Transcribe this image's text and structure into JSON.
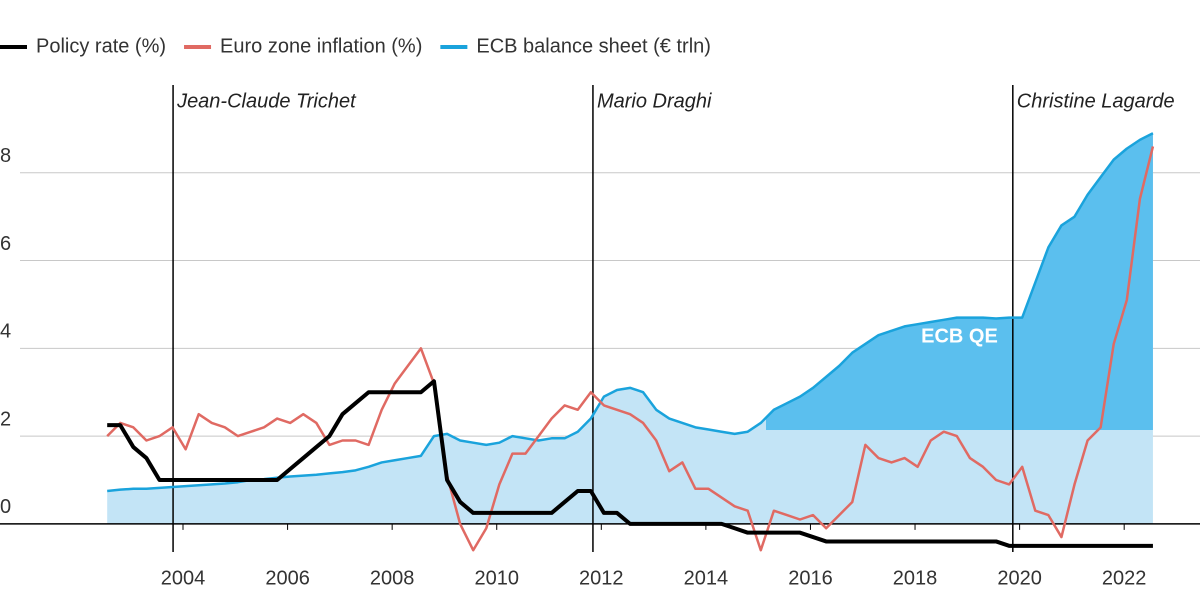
{
  "chart_data": {
    "type": "line",
    "x": [
      2002.55,
      2002.8,
      2003.05,
      2003.3,
      2003.55,
      2003.8,
      2004.05,
      2004.3,
      2004.55,
      2004.8,
      2005.05,
      2005.3,
      2005.55,
      2005.8,
      2006.05,
      2006.3,
      2006.55,
      2006.8,
      2007.05,
      2007.3,
      2007.55,
      2007.8,
      2008.05,
      2008.3,
      2008.55,
      2008.8,
      2009.05,
      2009.3,
      2009.55,
      2009.8,
      2010.05,
      2010.3,
      2010.55,
      2010.8,
      2011.05,
      2011.3,
      2011.55,
      2011.8,
      2012.05,
      2012.3,
      2012.55,
      2012.8,
      2013.05,
      2013.3,
      2013.55,
      2013.8,
      2014.05,
      2014.3,
      2014.55,
      2014.8,
      2015.05,
      2015.3,
      2015.55,
      2015.8,
      2016.05,
      2016.3,
      2016.55,
      2016.8,
      2017.05,
      2017.3,
      2017.55,
      2017.8,
      2018.05,
      2018.3,
      2018.55,
      2018.8,
      2019.05,
      2019.3,
      2019.55,
      2019.8,
      2020.05,
      2020.3,
      2020.55,
      2020.8,
      2021.05,
      2021.3,
      2021.55,
      2021.8,
      2022.05,
      2022.3,
      2022.55
    ],
    "series": [
      {
        "name": "Policy rate (%)",
        "color": "#000000",
        "width": 4,
        "values": [
          2.25,
          2.25,
          1.75,
          1.5,
          1.0,
          1.0,
          1.0,
          1.0,
          1.0,
          1.0,
          1.0,
          1.0,
          1.0,
          1.0,
          1.25,
          1.5,
          1.75,
          2.0,
          2.5,
          2.75,
          3.0,
          3.0,
          3.0,
          3.0,
          3.0,
          3.25,
          1.0,
          0.5,
          0.25,
          0.25,
          0.25,
          0.25,
          0.25,
          0.25,
          0.25,
          0.5,
          0.75,
          0.75,
          0.25,
          0.25,
          0.0,
          0.0,
          0.0,
          0.0,
          0.0,
          0.0,
          0.0,
          0.0,
          -0.1,
          -0.2,
          -0.2,
          -0.2,
          -0.2,
          -0.2,
          -0.3,
          -0.4,
          -0.4,
          -0.4,
          -0.4,
          -0.4,
          -0.4,
          -0.4,
          -0.4,
          -0.4,
          -0.4,
          -0.4,
          -0.4,
          -0.4,
          -0.4,
          -0.5,
          -0.5,
          -0.5,
          -0.5,
          -0.5,
          -0.5,
          -0.5,
          -0.5,
          -0.5,
          -0.5,
          -0.5,
          -0.5
        ]
      },
      {
        "name": "Euro zone inflation (%)",
        "color": "#e06a63",
        "width": 2.5,
        "values": [
          2.0,
          2.3,
          2.2,
          1.9,
          2.0,
          2.2,
          1.7,
          2.5,
          2.3,
          2.2,
          2.0,
          2.1,
          2.2,
          2.4,
          2.3,
          2.5,
          2.3,
          1.8,
          1.9,
          1.9,
          1.8,
          2.6,
          3.2,
          3.6,
          4.0,
          3.2,
          1.1,
          0.0,
          -0.6,
          -0.1,
          0.9,
          1.6,
          1.6,
          2.0,
          2.4,
          2.7,
          2.6,
          3.0,
          2.7,
          2.6,
          2.5,
          2.3,
          1.9,
          1.2,
          1.4,
          0.8,
          0.8,
          0.6,
          0.4,
          0.3,
          -0.6,
          0.3,
          0.2,
          0.1,
          0.2,
          -0.1,
          0.2,
          0.5,
          1.8,
          1.5,
          1.4,
          1.5,
          1.3,
          1.9,
          2.1,
          2.0,
          1.5,
          1.3,
          1.0,
          0.9,
          1.3,
          0.3,
          0.2,
          -0.3,
          0.9,
          1.9,
          2.2,
          4.1,
          5.1,
          7.4,
          8.6
        ]
      },
      {
        "name": "ECB balance sheet (€ trln)",
        "color": "#1aa3dc",
        "width": 2.5,
        "fill": "#c3e4f6",
        "values": [
          0.75,
          0.78,
          0.8,
          0.8,
          0.82,
          0.84,
          0.86,
          0.88,
          0.9,
          0.92,
          0.95,
          1.0,
          1.02,
          1.05,
          1.08,
          1.1,
          1.12,
          1.15,
          1.18,
          1.22,
          1.3,
          1.4,
          1.45,
          1.5,
          1.55,
          2.0,
          2.05,
          1.9,
          1.85,
          1.8,
          1.85,
          2.0,
          1.95,
          1.9,
          1.95,
          1.95,
          2.1,
          2.4,
          2.9,
          3.05,
          3.1,
          3.0,
          2.6,
          2.4,
          2.3,
          2.2,
          2.15,
          2.1,
          2.05,
          2.1,
          2.3,
          2.6,
          2.75,
          2.9,
          3.1,
          3.35,
          3.6,
          3.9,
          4.1,
          4.3,
          4.4,
          4.5,
          4.55,
          4.6,
          4.65,
          4.7,
          4.7,
          4.7,
          4.68,
          4.7,
          4.7,
          5.5,
          6.3,
          6.8,
          7.0,
          7.5,
          7.9,
          8.3,
          8.55,
          8.75,
          8.9
        ]
      }
    ],
    "qe_region": {
      "label": "ECB QE",
      "x_start": 2015.15,
      "threshold": 2.14,
      "color": "#5bbfee"
    },
    "annotations": [
      {
        "text": "Jean-Claude Trichet",
        "x": 2003.81
      },
      {
        "text": "Mario Draghi",
        "x": 2011.84
      },
      {
        "text": "Christine Lagarde",
        "x": 2019.87
      }
    ],
    "xlim": [
      2000.5,
      2023.45
    ],
    "ylim": [
      -0.8,
      10
    ],
    "xticks": [
      2004,
      2006,
      2008,
      2010,
      2012,
      2014,
      2016,
      2018,
      2020,
      2022
    ],
    "yticks": [
      0,
      2,
      4,
      6,
      8
    ],
    "grid": true
  }
}
